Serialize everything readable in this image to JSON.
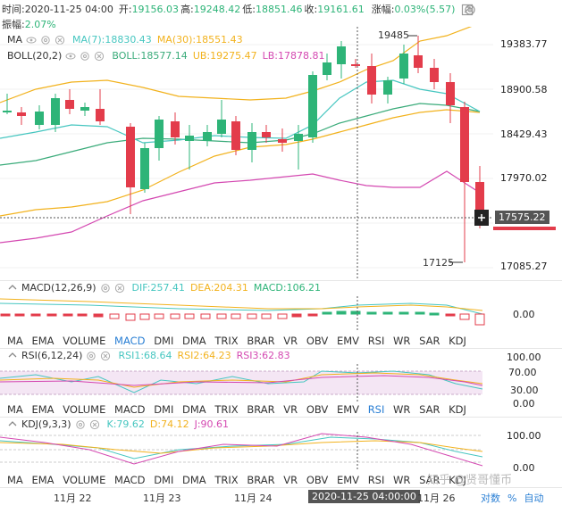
{
  "info": {
    "time_label": "时间:",
    "time": "2020-11-25 04:00",
    "open_label": "开:",
    "open": "19156.03",
    "high_label": "高:",
    "high": "19248.42",
    "low_label": "低:",
    "low": "18851.46",
    "close_label": "收:",
    "close": "19161.61",
    "change_label": "涨幅:",
    "change": "0.03%(5.57)",
    "amplitude_label": "振幅:",
    "amplitude": "2.07%"
  },
  "main_indicators": {
    "ma_name": "MA",
    "ma7": "MA(7):18830.43",
    "ma30": "MA(30):18551.43",
    "boll_name": "BOLL(20,2)",
    "boll": "BOLL:18577.14",
    "ub": "UB:19275.47",
    "lb": "LB:17878.81"
  },
  "price_axis": [
    "19383.77",
    "18900.58",
    "18429.43",
    "17970.02",
    "17575.22",
    "17085.27"
  ],
  "price_badge": "17575.22",
  "annotations": {
    "high": "19485",
    "low": "17125"
  },
  "macd": {
    "name": "MACD(12,26,9)",
    "dif": "DIF:257.41",
    "dea": "DEA:204.31",
    "macd": "MACD:106.21",
    "axis": "0.00"
  },
  "tabs1": {
    "items": [
      "MA",
      "EMA",
      "VOLUME",
      "MACD",
      "DMI",
      "DMA",
      "TRIX",
      "BRAR",
      "VR",
      "OBV",
      "EMV",
      "RSI",
      "WR",
      "SAR",
      "KDJ"
    ],
    "active": "MACD"
  },
  "rsi": {
    "name": "RSI(6,12,24)",
    "rsi1": "RSI1:68.64",
    "rsi2": "RSI2:64.23",
    "rsi3": "RSI3:62.83",
    "axis": [
      "100.00",
      "70.00",
      "30.00",
      "0.00"
    ]
  },
  "tabs2": {
    "items": [
      "MA",
      "EMA",
      "VOLUME",
      "MACD",
      "DMI",
      "DMA",
      "TRIX",
      "BRAR",
      "VR",
      "OBV",
      "EMV",
      "RSI",
      "WR",
      "SAR",
      "KDJ"
    ],
    "active": "RSI"
  },
  "kdj": {
    "name": "KDJ(9,3,3)",
    "k": "K:79.62",
    "d": "D:74.12",
    "j": "J:90.61",
    "axis": [
      "100.00",
      "0.00"
    ]
  },
  "tabs3": {
    "items": [
      "MA",
      "EMA",
      "VOLUME",
      "MACD",
      "DMI",
      "DMA",
      "TRIX",
      "BRAR",
      "VR",
      "OBV",
      "EMV",
      "RSI",
      "WR",
      "SAR",
      "KDJ"
    ],
    "active": ""
  },
  "dates": [
    "11月 22",
    "11月 23",
    "11月 24",
    "11月 26"
  ],
  "date_badge": "2020-11-25 04:00:00",
  "bottom_controls": {
    "log": "对数",
    "pct": "%",
    "auto": "自动"
  },
  "watermark": "知乎 @贤哥懂币",
  "colors": {
    "up": "#2eb478",
    "down": "#e33c4b",
    "ma7": "#46c6c0",
    "ma30": "#f2b21d",
    "boll_mid": "#3aab7a",
    "ub": "#f2b21d",
    "lb": "#d448b1",
    "accent": "#2a7fd4"
  }
}
